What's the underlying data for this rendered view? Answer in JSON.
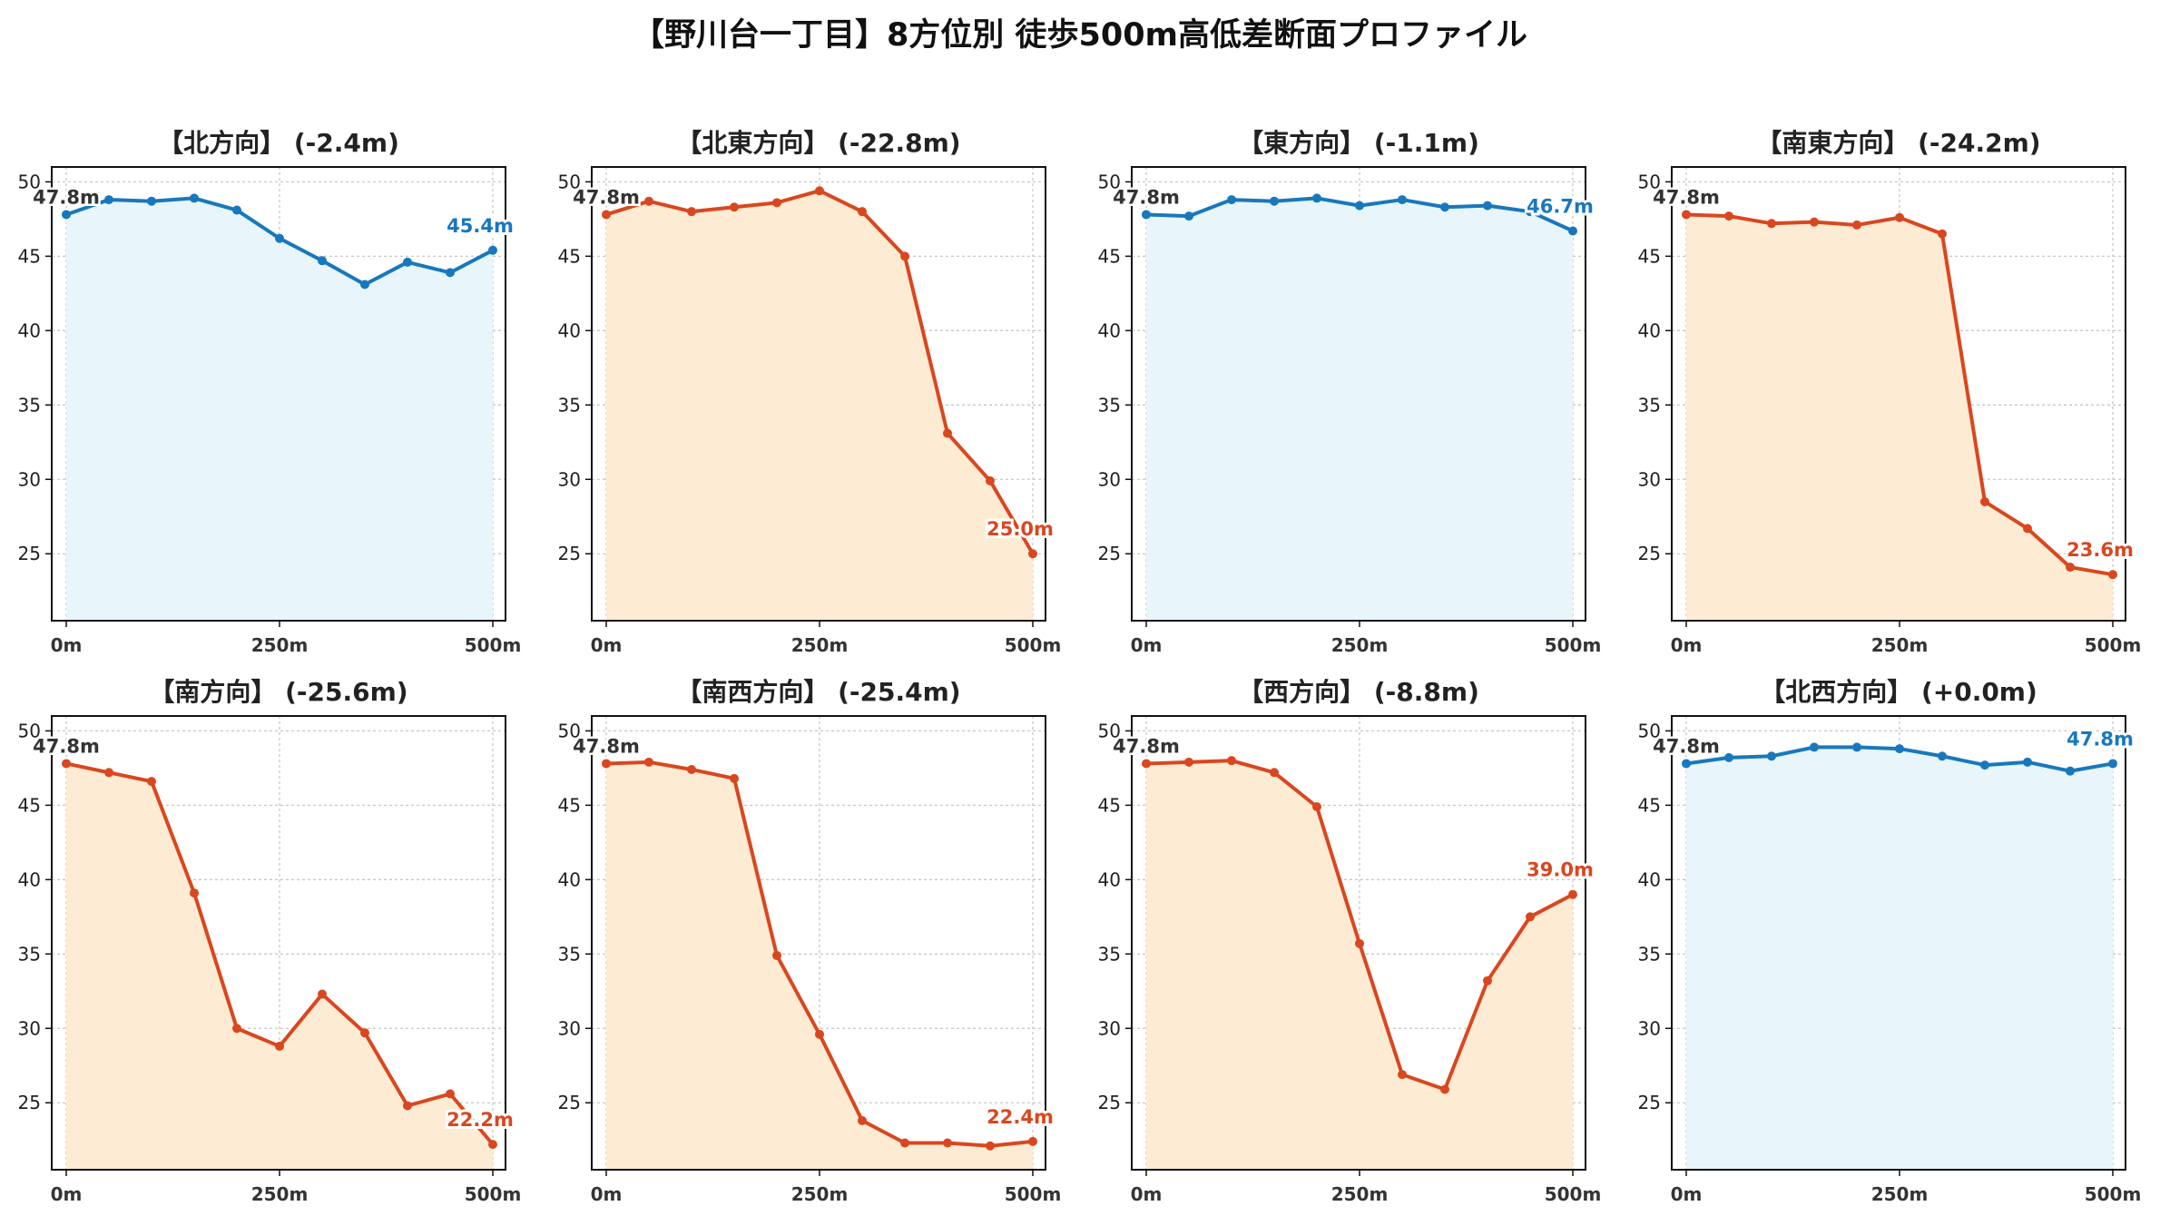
{
  "title": "【野川台一丁目】8方位別 徒歩500m高低差断面プロファイル",
  "colors": {
    "up_line": "#1878bd",
    "up_fill": "#e8f5fb",
    "down_line": "#d9471f",
    "down_fill": "#fdebd3",
    "start_label": "#333333"
  },
  "chart_data": [
    {
      "type": "area",
      "title": "【北方向】 (-2.4m)",
      "start_label": "47.8m",
      "end_label": "45.4m",
      "trend": "up",
      "x": [
        0,
        50,
        100,
        150,
        200,
        250,
        300,
        350,
        400,
        450,
        500
      ],
      "y": [
        47.8,
        48.8,
        48.7,
        48.9,
        48.1,
        46.2,
        44.7,
        43.1,
        44.6,
        43.9,
        45.4
      ],
      "xticks": [
        "0m",
        "250m",
        "500m"
      ],
      "yticks": [
        25,
        30,
        35,
        40,
        45,
        50
      ],
      "ylim": [
        20.5,
        51
      ],
      "grid": true
    },
    {
      "type": "area",
      "title": "【北東方向】 (-22.8m)",
      "start_label": "47.8m",
      "end_label": "25.0m",
      "trend": "down",
      "x": [
        0,
        50,
        100,
        150,
        200,
        250,
        300,
        350,
        400,
        450,
        500
      ],
      "y": [
        47.8,
        48.7,
        48.0,
        48.3,
        48.6,
        49.4,
        48.0,
        45.0,
        33.1,
        29.9,
        25.0
      ],
      "xticks": [
        "0m",
        "250m",
        "500m"
      ],
      "yticks": [
        25,
        30,
        35,
        40,
        45,
        50
      ],
      "ylim": [
        20.5,
        51
      ],
      "grid": true
    },
    {
      "type": "area",
      "title": "【東方向】 (-1.1m)",
      "start_label": "47.8m",
      "end_label": "46.7m",
      "trend": "up",
      "x": [
        0,
        50,
        100,
        150,
        200,
        250,
        300,
        350,
        400,
        450,
        500
      ],
      "y": [
        47.8,
        47.7,
        48.8,
        48.7,
        48.9,
        48.4,
        48.8,
        48.3,
        48.4,
        48.0,
        46.7
      ],
      "xticks": [
        "0m",
        "250m",
        "500m"
      ],
      "yticks": [
        25,
        30,
        35,
        40,
        45,
        50
      ],
      "ylim": [
        20.5,
        51
      ],
      "grid": true
    },
    {
      "type": "area",
      "title": "【南東方向】 (-24.2m)",
      "start_label": "47.8m",
      "end_label": "23.6m",
      "trend": "down",
      "x": [
        0,
        50,
        100,
        150,
        200,
        250,
        300,
        350,
        400,
        450,
        500
      ],
      "y": [
        47.8,
        47.7,
        47.2,
        47.3,
        47.1,
        47.6,
        46.5,
        28.5,
        26.7,
        24.1,
        23.6
      ],
      "xticks": [
        "0m",
        "250m",
        "500m"
      ],
      "yticks": [
        25,
        30,
        35,
        40,
        45,
        50
      ],
      "ylim": [
        20.5,
        51
      ],
      "grid": true
    },
    {
      "type": "area",
      "title": "【南方向】 (-25.6m)",
      "start_label": "47.8m",
      "end_label": "22.2m",
      "trend": "down",
      "x": [
        0,
        50,
        100,
        150,
        200,
        250,
        300,
        350,
        400,
        450,
        500
      ],
      "y": [
        47.8,
        47.2,
        46.6,
        39.1,
        30.0,
        28.8,
        32.3,
        29.7,
        24.8,
        25.6,
        22.2
      ],
      "xticks": [
        "0m",
        "250m",
        "500m"
      ],
      "yticks": [
        25,
        30,
        35,
        40,
        45,
        50
      ],
      "ylim": [
        20.5,
        51
      ],
      "grid": true
    },
    {
      "type": "area",
      "title": "【南西方向】 (-25.4m)",
      "start_label": "47.8m",
      "end_label": "22.4m",
      "trend": "down",
      "x": [
        0,
        50,
        100,
        150,
        200,
        250,
        300,
        350,
        400,
        450,
        500
      ],
      "y": [
        47.8,
        47.9,
        47.4,
        46.8,
        34.9,
        29.6,
        23.8,
        22.3,
        22.3,
        22.1,
        22.4
      ],
      "xticks": [
        "0m",
        "250m",
        "500m"
      ],
      "yticks": [
        25,
        30,
        35,
        40,
        45,
        50
      ],
      "ylim": [
        20.5,
        51
      ],
      "grid": true
    },
    {
      "type": "area",
      "title": "【西方向】 (-8.8m)",
      "start_label": "47.8m",
      "end_label": "39.0m",
      "trend": "down",
      "x": [
        0,
        50,
        100,
        150,
        200,
        250,
        300,
        350,
        400,
        450,
        500
      ],
      "y": [
        47.8,
        47.9,
        48.0,
        47.2,
        44.9,
        35.7,
        26.9,
        25.9,
        33.2,
        37.5,
        39.0
      ],
      "xticks": [
        "0m",
        "250m",
        "500m"
      ],
      "yticks": [
        25,
        30,
        35,
        40,
        45,
        50
      ],
      "ylim": [
        20.5,
        51
      ],
      "grid": true
    },
    {
      "type": "area",
      "title": "【北西方向】 (+0.0m)",
      "start_label": "47.8m",
      "end_label": "47.8m",
      "trend": "up",
      "x": [
        0,
        50,
        100,
        150,
        200,
        250,
        300,
        350,
        400,
        450,
        500
      ],
      "y": [
        47.8,
        48.2,
        48.3,
        48.9,
        48.9,
        48.8,
        48.3,
        47.7,
        47.9,
        47.3,
        47.8
      ],
      "xticks": [
        "0m",
        "250m",
        "500m"
      ],
      "yticks": [
        25,
        30,
        35,
        40,
        45,
        50
      ],
      "ylim": [
        20.5,
        51
      ],
      "grid": true
    }
  ]
}
